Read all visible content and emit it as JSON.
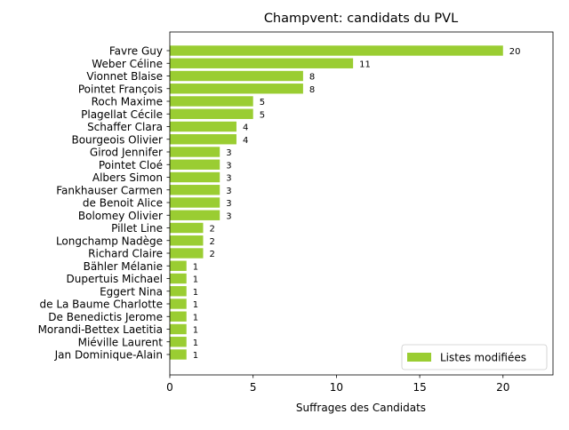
{
  "chart_data": {
    "type": "bar",
    "orientation": "horizontal",
    "title": "Champvent: candidats du PVL",
    "xlabel": "Suffrages des Candidats",
    "ylabel": "",
    "xlim": [
      0,
      23
    ],
    "xticks": [
      0,
      5,
      10,
      15,
      20
    ],
    "grid": false,
    "legend_position": "lower-right",
    "categories": [
      "Favre Guy",
      "Weber Céline",
      "Vionnet Blaise",
      "Pointet François",
      "Roch Maxime",
      "Plagellat Cécile",
      "Schaffer Clara",
      "Bourgeois Olivier",
      "Girod Jennifer",
      "Pointet Cloé",
      "Albers Simon",
      "Fankhauser Carmen",
      "de Benoit Alice",
      "Bolomey Olivier",
      "Pillet Line",
      "Longchamp Nadège",
      "Richard Claire",
      "Bähler Mélanie",
      "Dupertuis Michael",
      "Eggert Nina",
      "de La Baume Charlotte",
      "De Benedictis Jerome",
      "Morandi-Bettex Laetitia",
      "Miéville Laurent",
      "Jan Dominique-Alain"
    ],
    "series": [
      {
        "name": "Listes modifiées",
        "color": "#9acd32",
        "values": [
          20,
          11,
          8,
          8,
          5,
          5,
          4,
          4,
          3,
          3,
          3,
          3,
          3,
          3,
          2,
          2,
          2,
          1,
          1,
          1,
          1,
          1,
          1,
          1,
          1
        ]
      }
    ]
  }
}
